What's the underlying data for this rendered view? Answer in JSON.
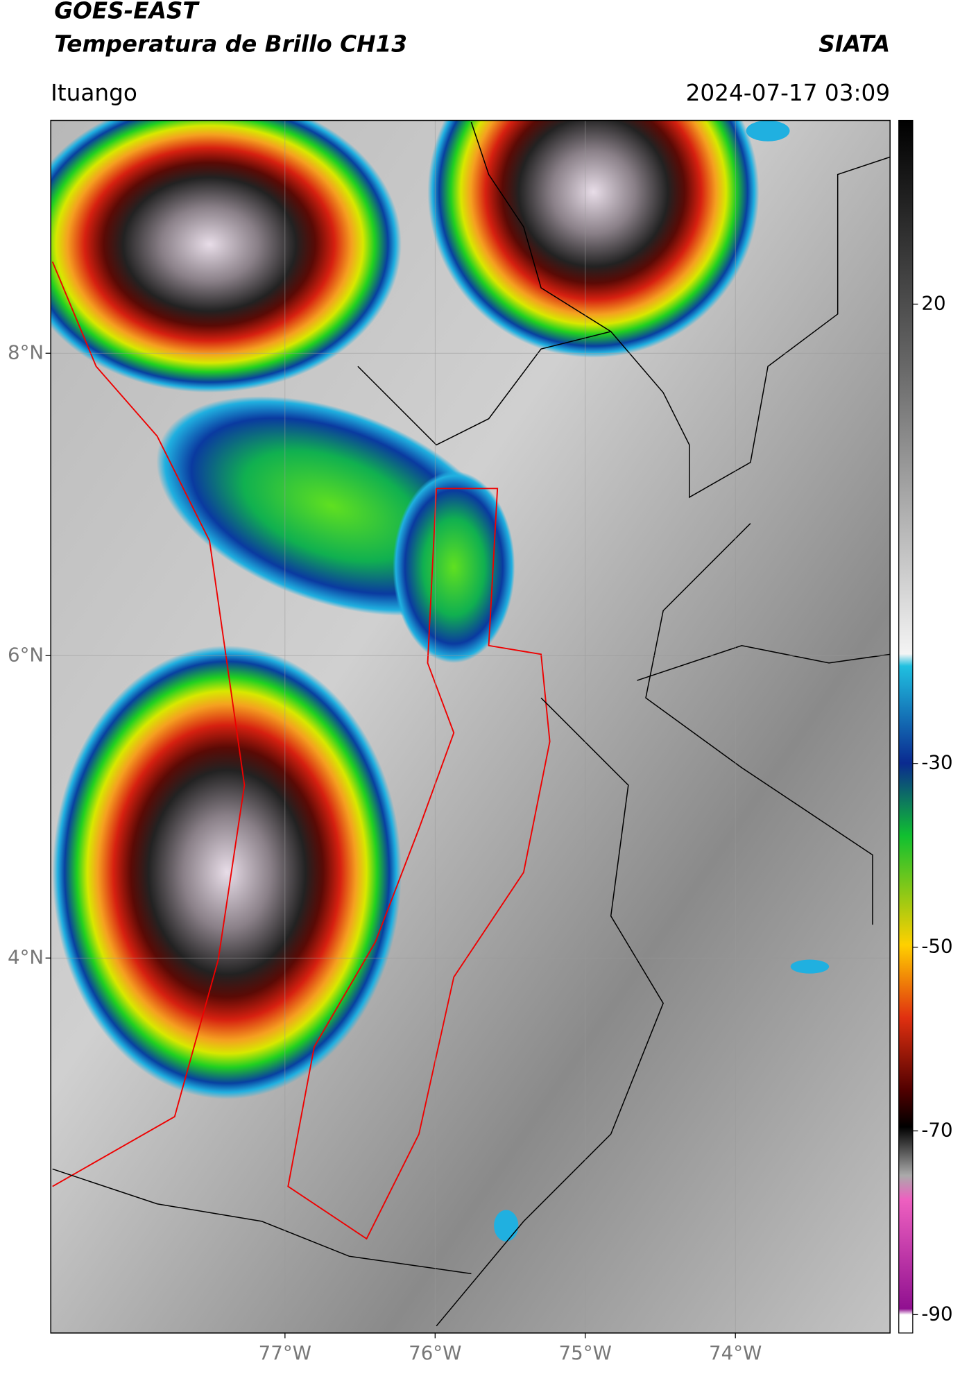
{
  "header": {
    "title_line1": "GOES-EAST",
    "title_line2": "Temperatura de Brillo CH13",
    "source": "SIATA",
    "location": "Ituango",
    "datetime": "2024-07-17 03:09"
  },
  "map": {
    "xlim": [
      -78.56,
      -72.97
    ],
    "ylim": [
      1.52,
      9.54
    ],
    "xticks": [
      {
        "value": -77,
        "label": "77°W"
      },
      {
        "value": -76,
        "label": "76°W"
      },
      {
        "value": -75,
        "label": "75°W"
      },
      {
        "value": -74,
        "label": "74°W"
      }
    ],
    "yticks": [
      {
        "value": 4,
        "label": "4°N"
      },
      {
        "value": 6,
        "label": "6°N"
      },
      {
        "value": 8,
        "label": "8°N"
      }
    ],
    "grid": true
  },
  "colorbar": {
    "lim": [
      -92,
      40
    ],
    "ticks": [
      20,
      -30,
      -50,
      -70,
      -90
    ]
  }
}
